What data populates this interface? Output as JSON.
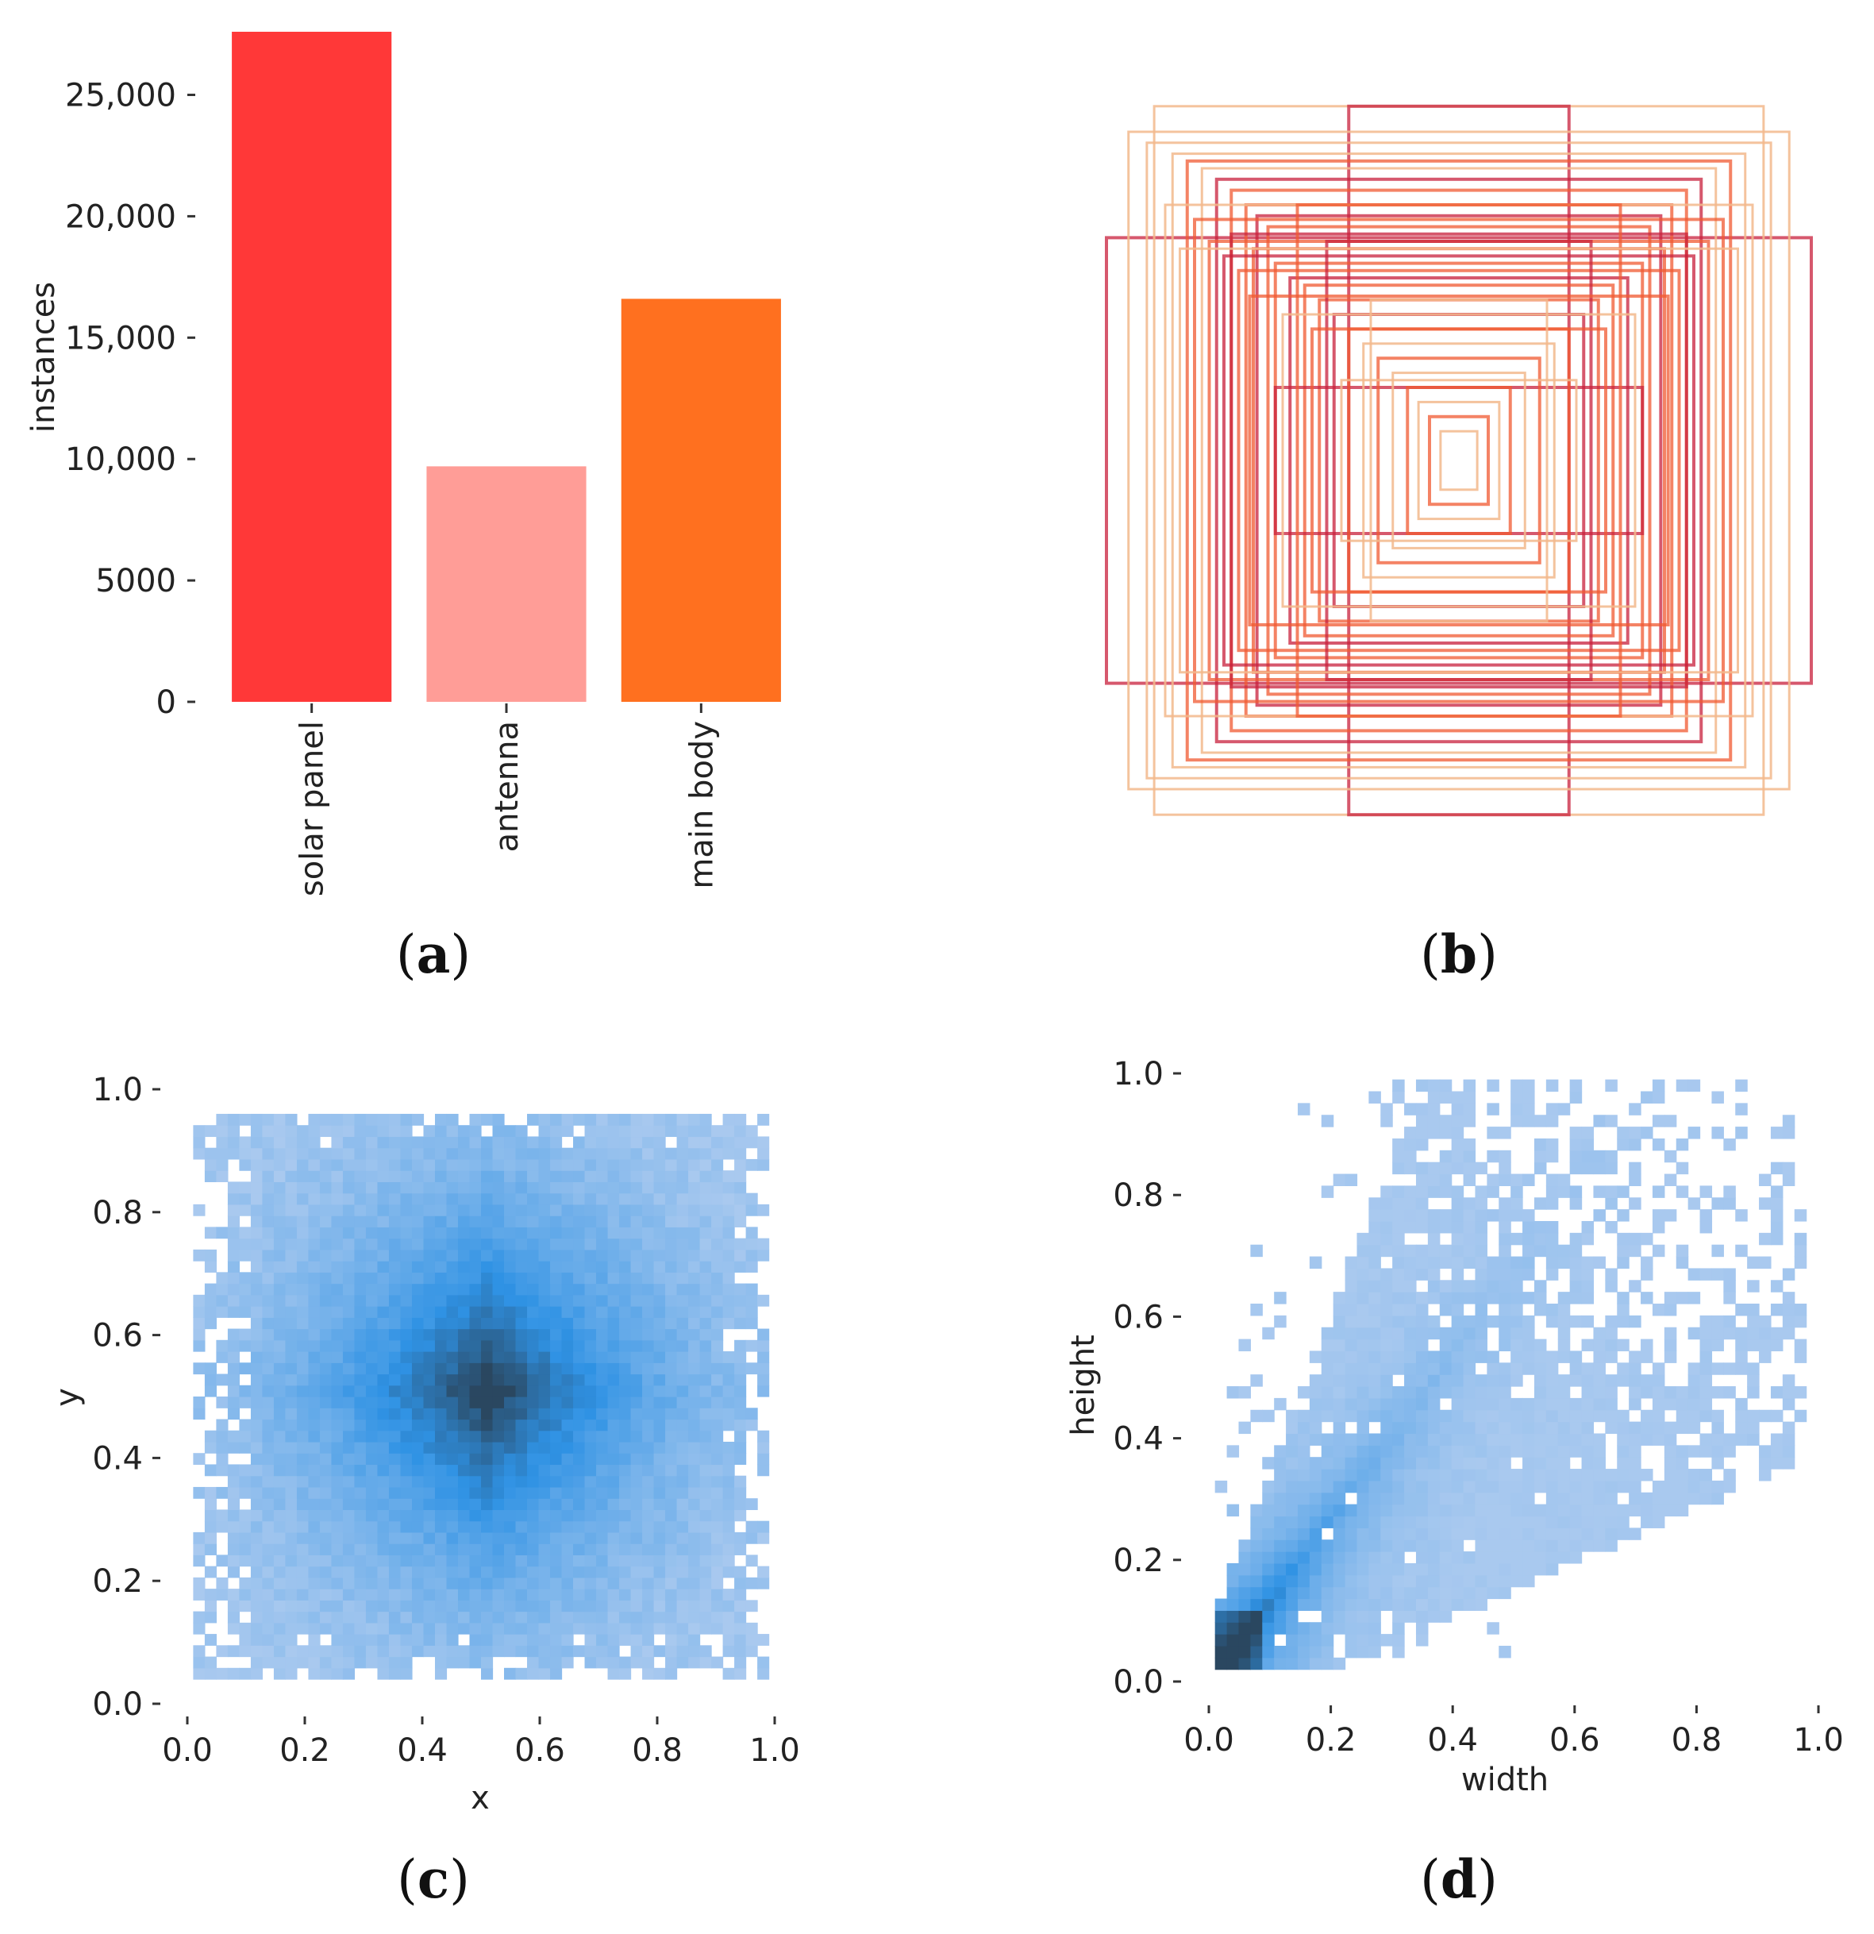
{
  "figure": {
    "panels": [
      {
        "id": "a",
        "open": "(",
        "letter": "a",
        "close": ")"
      },
      {
        "id": "b",
        "open": "(",
        "letter": "b",
        "close": ")"
      },
      {
        "id": "c",
        "open": "(",
        "letter": "c",
        "close": ")"
      },
      {
        "id": "d",
        "open": "(",
        "letter": "d",
        "close": ")"
      }
    ]
  },
  "colors": {
    "solar_panel": "#ff3838",
    "antenna": "#ff9d97",
    "main_body": "#ff701f",
    "hist_light": "#a9c9ef",
    "hist_mid": "#2f92e4",
    "hist_dark": "#2a4760",
    "box_light": "#f2b88c",
    "box_mid": "#f05a32",
    "box_dark": "#c8203c"
  },
  "chart_data": [
    {
      "panel": "a",
      "type": "bar",
      "title": "",
      "xlabel": "",
      "ylabel": "instances",
      "categories": [
        "solar panel",
        "antenna",
        "main body"
      ],
      "values": [
        27600,
        9700,
        16600
      ],
      "bar_colors": [
        "#ff3838",
        "#ff9d97",
        "#ff701f"
      ],
      "ylim": [
        0,
        27600
      ],
      "yticks": [
        0,
        5000,
        10000,
        15000,
        20000,
        25000
      ],
      "ytick_labels": [
        "0",
        "5000",
        "10,000",
        "15,000",
        "20,000",
        "25,000"
      ],
      "grid": false
    },
    {
      "panel": "b",
      "type": "other",
      "description_kind": "overlaid bounding boxes centered on image",
      "xlim": [
        0,
        1
      ],
      "ylim": [
        0,
        1
      ],
      "boxes": [
        {
          "w": 0.96,
          "h": 0.61,
          "c": "dark"
        },
        {
          "w": 0.83,
          "h": 0.97,
          "c": "light"
        },
        {
          "w": 0.3,
          "h": 0.97,
          "c": "dark"
        },
        {
          "w": 0.9,
          "h": 0.9,
          "c": "light"
        },
        {
          "w": 0.85,
          "h": 0.87,
          "c": "light"
        },
        {
          "w": 0.78,
          "h": 0.84,
          "c": "light"
        },
        {
          "w": 0.74,
          "h": 0.82,
          "c": "mid"
        },
        {
          "w": 0.7,
          "h": 0.8,
          "c": "light"
        },
        {
          "w": 0.66,
          "h": 0.77,
          "c": "dark"
        },
        {
          "w": 0.62,
          "h": 0.74,
          "c": "mid"
        },
        {
          "w": 0.58,
          "h": 0.7,
          "c": "mid"
        },
        {
          "w": 0.55,
          "h": 0.67,
          "c": "dark"
        },
        {
          "w": 0.52,
          "h": 0.64,
          "c": "mid"
        },
        {
          "w": 0.68,
          "h": 0.6,
          "c": "mid"
        },
        {
          "w": 0.62,
          "h": 0.62,
          "c": "dark"
        },
        {
          "w": 0.56,
          "h": 0.58,
          "c": "mid"
        },
        {
          "w": 0.5,
          "h": 0.54,
          "c": "mid"
        },
        {
          "w": 0.46,
          "h": 0.5,
          "c": "dark"
        },
        {
          "w": 0.42,
          "h": 0.48,
          "c": "mid"
        },
        {
          "w": 0.38,
          "h": 0.44,
          "c": "mid"
        },
        {
          "w": 0.34,
          "h": 0.4,
          "c": "dark"
        },
        {
          "w": 0.5,
          "h": 0.2,
          "c": "dark"
        },
        {
          "w": 0.3,
          "h": 0.36,
          "c": "mid"
        },
        {
          "w": 0.26,
          "h": 0.32,
          "c": "light"
        },
        {
          "w": 0.22,
          "h": 0.28,
          "c": "mid"
        },
        {
          "w": 0.18,
          "h": 0.24,
          "c": "light"
        },
        {
          "w": 0.14,
          "h": 0.2,
          "c": "mid"
        },
        {
          "w": 0.11,
          "h": 0.16,
          "c": "light"
        },
        {
          "w": 0.08,
          "h": 0.12,
          "c": "mid"
        },
        {
          "w": 0.05,
          "h": 0.08,
          "c": "light"
        },
        {
          "w": 0.8,
          "h": 0.7,
          "c": "light"
        },
        {
          "w": 0.72,
          "h": 0.66,
          "c": "mid"
        },
        {
          "w": 0.64,
          "h": 0.56,
          "c": "dark"
        },
        {
          "w": 0.6,
          "h": 0.52,
          "c": "mid"
        },
        {
          "w": 0.44,
          "h": 0.7,
          "c": "mid"
        },
        {
          "w": 0.36,
          "h": 0.6,
          "c": "dark"
        },
        {
          "w": 0.4,
          "h": 0.36,
          "c": "mid"
        },
        {
          "w": 0.57,
          "h": 0.45,
          "c": "mid"
        },
        {
          "w": 0.76,
          "h": 0.58,
          "c": "light"
        },
        {
          "w": 0.48,
          "h": 0.4,
          "c": "light"
        },
        {
          "w": 0.24,
          "h": 0.44,
          "c": "light"
        },
        {
          "w": 0.32,
          "h": 0.22,
          "c": "light"
        }
      ]
    },
    {
      "panel": "c",
      "type": "heatmap",
      "title": "",
      "xlabel": "x",
      "ylabel": "y",
      "xlim": [
        0,
        1
      ],
      "ylim": [
        0,
        1
      ],
      "xticks": [
        0.0,
        0.2,
        0.4,
        0.6,
        0.8,
        1.0
      ],
      "xtick_labels": [
        "0.0",
        "0.2",
        "0.4",
        "0.6",
        "0.8",
        "1.0"
      ],
      "yticks": [
        0.0,
        0.2,
        0.4,
        0.6,
        0.8,
        1.0
      ],
      "ytick_labels": [
        "0.0",
        "0.2",
        "0.4",
        "0.6",
        "0.8",
        "1.0"
      ],
      "bins": 50,
      "extent_x": [
        0.01,
        0.99
      ],
      "extent_y": [
        0.04,
        0.96
      ],
      "peak_center": [
        0.5,
        0.5
      ],
      "grid": false
    },
    {
      "panel": "d",
      "type": "heatmap",
      "title": "",
      "xlabel": "width",
      "ylabel": "height",
      "xlim": [
        0,
        1
      ],
      "ylim": [
        0,
        1
      ],
      "xticks": [
        0.0,
        0.2,
        0.4,
        0.6,
        0.8,
        1.0
      ],
      "xtick_labels": [
        "0.0",
        "0.2",
        "0.4",
        "0.6",
        "0.8",
        "1.0"
      ],
      "yticks": [
        0.0,
        0.2,
        0.4,
        0.6,
        0.8,
        1.0
      ],
      "ytick_labels": [
        "0.0",
        "0.2",
        "0.4",
        "0.6",
        "0.8",
        "1.0"
      ],
      "bins": 50,
      "extent_x": [
        0.01,
        0.98
      ],
      "extent_y": [
        0.02,
        0.99
      ],
      "peak_center": [
        0.02,
        0.03
      ],
      "grid": false
    }
  ]
}
